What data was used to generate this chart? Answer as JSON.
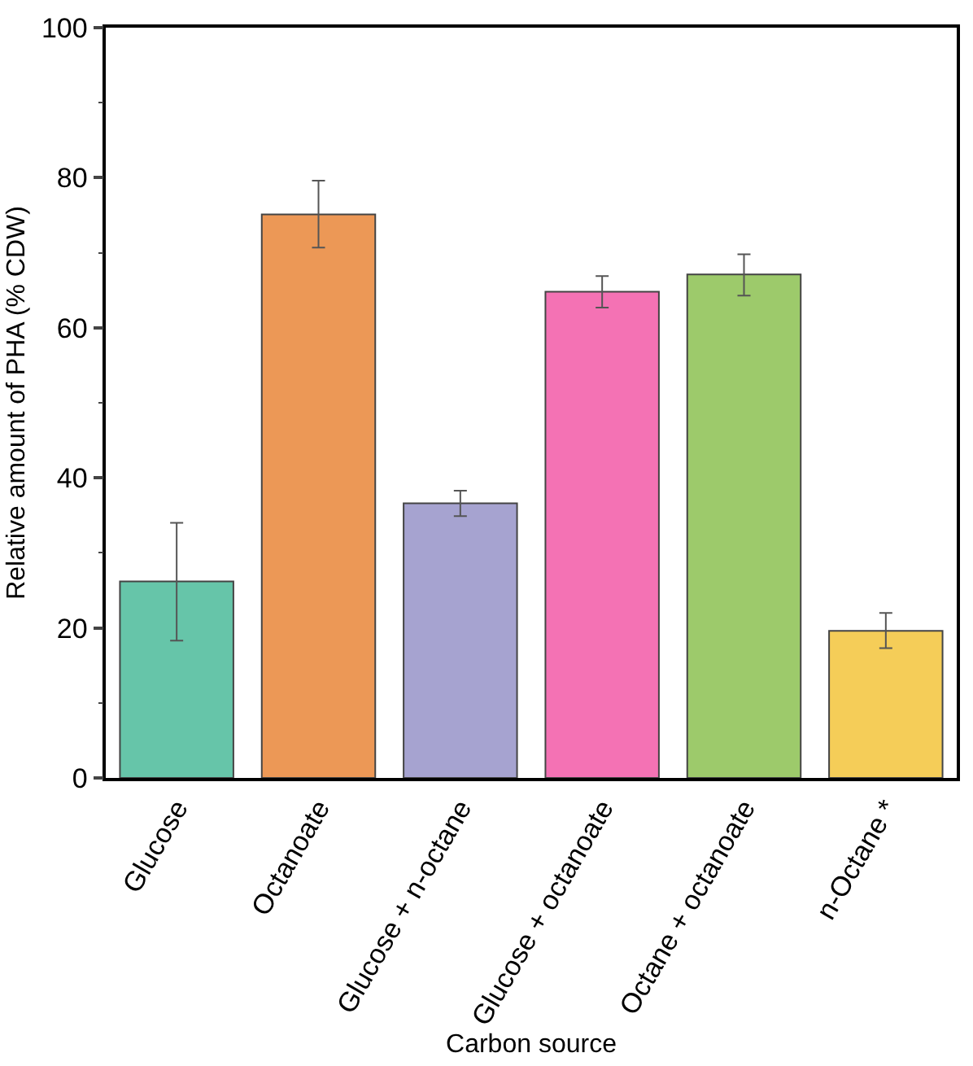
{
  "chart_data": {
    "type": "bar",
    "xlabel": "Carbon source",
    "ylabel": "Relative amount of PHA (% CDW)",
    "categories": [
      "Glucose",
      "Octanoate",
      "Glucose + n-octane",
      "Glucose + octanoate",
      "Octane + octanoate",
      "n-Octane *"
    ],
    "values": [
      26.2,
      75.1,
      36.6,
      64.8,
      67.1,
      19.6
    ],
    "colors": [
      "#66c5a9",
      "#ec9856",
      "#a6a3d0",
      "#f472b4",
      "#9dca6b",
      "#f5cd58"
    ],
    "errors": [
      [
        18.3,
        34.0
      ],
      [
        70.7,
        79.6
      ],
      [
        34.9,
        38.3
      ],
      [
        62.7,
        66.9
      ],
      [
        64.3,
        69.8
      ],
      [
        17.3,
        22.0
      ]
    ],
    "ylim": [
      0,
      100
    ],
    "yticks": [
      0,
      20,
      40,
      60,
      80,
      100
    ]
  }
}
